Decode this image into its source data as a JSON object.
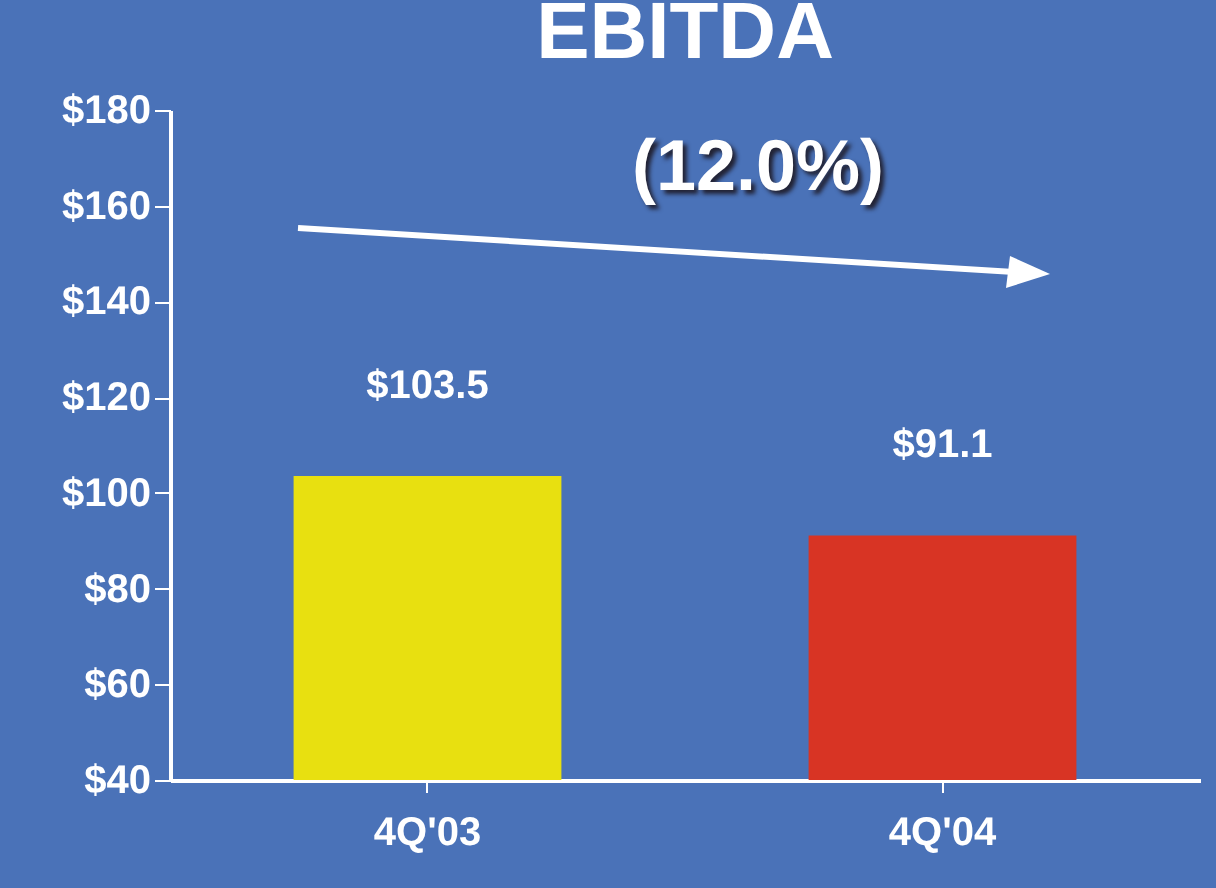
{
  "chart_data": {
    "type": "bar",
    "title": "EBITDA",
    "categories": [
      "4Q'03",
      "4Q'04"
    ],
    "values": [
      103.5,
      91.1
    ],
    "colors": [
      "#e8e010",
      "#d83424"
    ],
    "value_labels": [
      "$103.5",
      "$91.1"
    ],
    "ylim": [
      40,
      180
    ],
    "yticks": [
      {
        "value": 40,
        "label": "$40"
      },
      {
        "value": 60,
        "label": "$60"
      },
      {
        "value": 80,
        "label": "$80"
      },
      {
        "value": 100,
        "label": "$100"
      },
      {
        "value": 120,
        "label": "$120"
      },
      {
        "value": 140,
        "label": "$140"
      },
      {
        "value": 160,
        "label": "$160"
      },
      {
        "value": 180,
        "label": "$180"
      }
    ],
    "annotations": [
      "(12.0%)"
    ]
  }
}
